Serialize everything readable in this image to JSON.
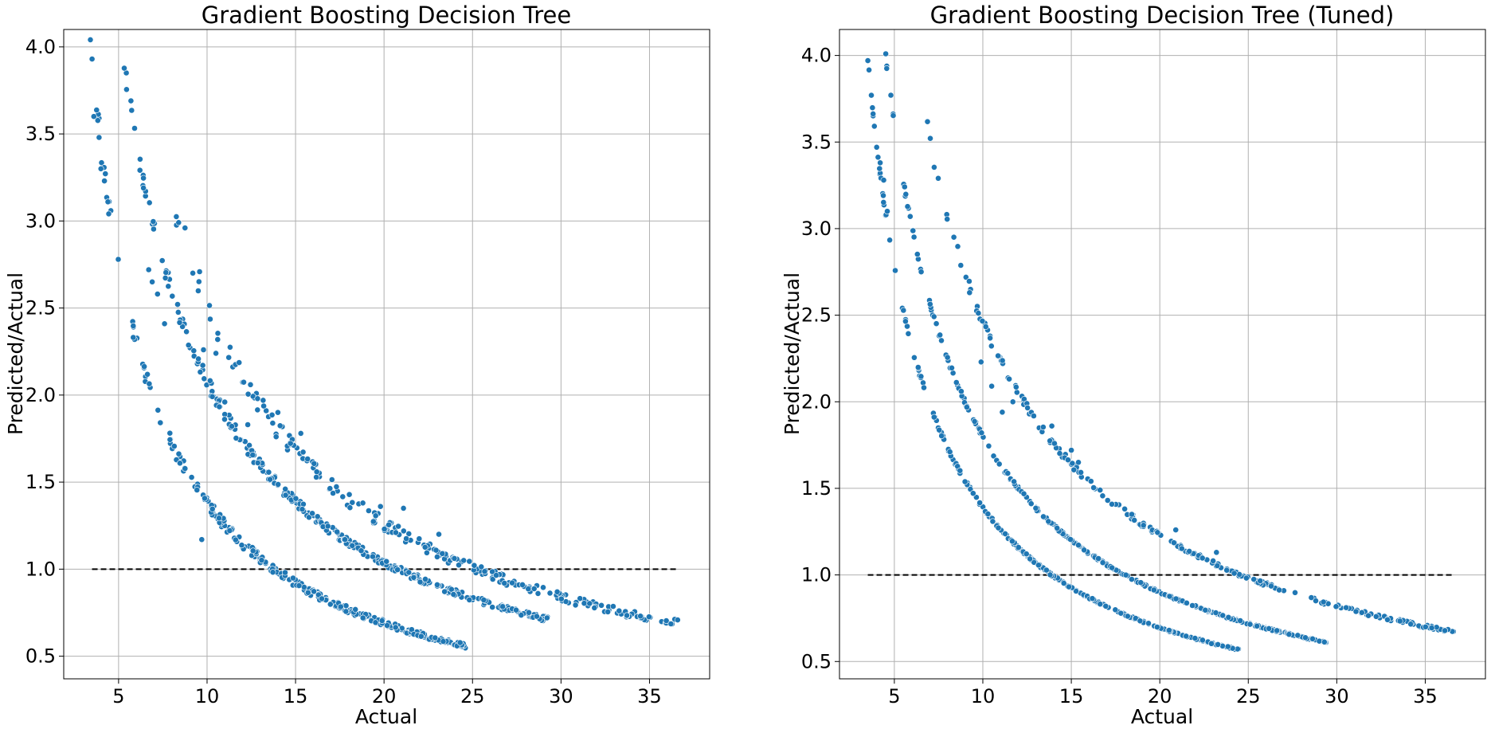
{
  "chart_data": [
    {
      "type": "scatter",
      "title": "Gradient Boosting Decision Tree",
      "xlabel": "Actual",
      "ylabel": "Predicted/Actual",
      "xlim": [
        1.9,
        38.4
      ],
      "ylim": [
        0.37,
        4.1
      ],
      "xticks": [
        "5",
        "10",
        "15",
        "20",
        "25",
        "30",
        "35"
      ],
      "yticks": [
        "0.5",
        "1.0",
        "1.5",
        "2.0",
        "2.5",
        "3.0",
        "3.5",
        "4.0"
      ],
      "grid": true,
      "marker_color": "#1f77b4",
      "reference_line": {
        "y": 1.0,
        "x_range": [
          3.5,
          36.6
        ],
        "style": "dashed",
        "color": "#000000"
      },
      "bands": [
        {
          "k": 13.8,
          "x_range": [
            3.4,
            24.6
          ],
          "n": 300,
          "spread": 0.025
        },
        {
          "k": 20.8,
          "x_range": [
            5.0,
            29.4
          ],
          "n": 320,
          "spread": 0.02
        },
        {
          "k": 25.2,
          "x_range": [
            8.0,
            36.6
          ],
          "n": 230,
          "spread": 0.03
        }
      ],
      "outliers": [
        {
          "x": 3.5,
          "y": 3.93
        },
        {
          "x": 3.6,
          "y": 3.6
        },
        {
          "x": 3.9,
          "y": 3.48
        },
        {
          "x": 4.0,
          "y": 3.3
        },
        {
          "x": 4.2,
          "y": 3.23
        },
        {
          "x": 4.4,
          "y": 3.11
        },
        {
          "x": 6.7,
          "y": 2.72
        },
        {
          "x": 6.9,
          "y": 2.65
        },
        {
          "x": 7.2,
          "y": 2.58
        },
        {
          "x": 7.6,
          "y": 2.41
        },
        {
          "x": 9.8,
          "y": 2.26
        },
        {
          "x": 10.5,
          "y": 2.24
        },
        {
          "x": 11.0,
          "y": 1.96
        },
        {
          "x": 12.3,
          "y": 1.83
        },
        {
          "x": 9.7,
          "y": 1.17
        },
        {
          "x": 14.0,
          "y": 1.9
        },
        {
          "x": 15.3,
          "y": 1.78
        },
        {
          "x": 19.8,
          "y": 1.36
        },
        {
          "x": 21.1,
          "y": 1.35
        },
        {
          "x": 23.1,
          "y": 1.2
        },
        {
          "x": 24.5,
          "y": 1.05
        }
      ]
    },
    {
      "type": "scatter",
      "title": "Gradient Boosting Decision Tree (Tuned)",
      "xlabel": "Actual",
      "ylabel": "Predicted/Actual",
      "xlim": [
        1.9,
        38.4
      ],
      "ylim": [
        0.4,
        4.15
      ],
      "xticks": [
        "5",
        "10",
        "15",
        "20",
        "25",
        "30",
        "35"
      ],
      "yticks": [
        "0.5",
        "1.0",
        "1.5",
        "2.0",
        "2.5",
        "3.0",
        "3.5",
        "4.0"
      ],
      "grid": true,
      "marker_color": "#1f77b4",
      "reference_line": {
        "y": 1.0,
        "x_range": [
          3.5,
          36.6
        ],
        "style": "dashed",
        "color": "#000000"
      },
      "bands": [
        {
          "k": 13.9,
          "x_range": [
            3.5,
            24.6
          ],
          "n": 280,
          "spread": 0.006
        },
        {
          "k": 18.0,
          "x_range": [
            4.5,
            29.4
          ],
          "n": 320,
          "spread": 0.006
        },
        {
          "k": 24.6,
          "x_range": [
            6.6,
            36.6
          ],
          "n": 240,
          "spread": 0.012
        }
      ],
      "outliers": [
        {
          "x": 3.5,
          "y": 3.97
        },
        {
          "x": 3.7,
          "y": 3.77
        },
        {
          "x": 4.0,
          "y": 3.47
        },
        {
          "x": 4.2,
          "y": 3.38
        },
        {
          "x": 4.4,
          "y": 3.28
        },
        {
          "x": 4.6,
          "y": 3.1
        },
        {
          "x": 9.9,
          "y": 2.23
        },
        {
          "x": 10.5,
          "y": 2.09
        },
        {
          "x": 11.7,
          "y": 2.0
        },
        {
          "x": 11.1,
          "y": 1.94
        },
        {
          "x": 13.9,
          "y": 1.86
        },
        {
          "x": 15.0,
          "y": 1.72
        },
        {
          "x": 15.4,
          "y": 1.65
        },
        {
          "x": 20.9,
          "y": 1.26
        },
        {
          "x": 23.2,
          "y": 1.13
        }
      ]
    }
  ]
}
